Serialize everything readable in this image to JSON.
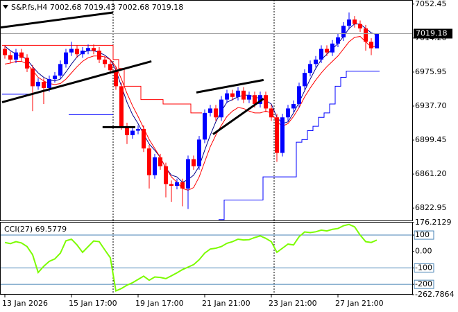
{
  "chart_data": [
    {
      "type": "candlestick",
      "title": "S&P.fs,H4  7002.68 7019.43 7002.68 7019.18",
      "categories": [
        "13 Jan 2026",
        null,
        null,
        null,
        null,
        null,
        null,
        null,
        null,
        null,
        null,
        null,
        "15 Jan 17:00",
        null,
        null,
        null,
        null,
        null,
        null,
        null,
        null,
        null,
        null,
        null,
        "19 Jan 17:00",
        null,
        null,
        null,
        null,
        null,
        null,
        null,
        null,
        null,
        null,
        null,
        "21 Jan 21:00",
        null,
        null,
        null,
        null,
        null,
        null,
        null,
        null,
        null,
        null,
        null,
        "23 Jan 21:00",
        null,
        null,
        null,
        null,
        null,
        null,
        null,
        null,
        null,
        null,
        null,
        "27 Jan 21:00",
        null,
        null,
        null,
        null,
        null,
        null,
        null
      ],
      "open": [
        7002,
        6995,
        6990,
        6998,
        6992,
        6980,
        6960,
        6965,
        6958,
        6968,
        6972,
        6985,
        6998,
        7002,
        6996,
        7000,
        7003,
        7000,
        6990,
        6985,
        6978,
        6960,
        6915,
        6905,
        6910,
        6912,
        6890,
        6860,
        6880,
        6870,
        6850,
        6848,
        6852,
        6845,
        6878,
        6870,
        6900,
        6930,
        6935,
        6925,
        6945,
        6952,
        6948,
        6955,
        6945,
        6950,
        6940,
        6950,
        6935,
        6925,
        6885,
        6925,
        6935,
        6940,
        6960,
        6975,
        6985,
        6990,
        7002,
        6998,
        7008,
        7015,
        7028,
        7035,
        7030,
        7025,
        7010,
        7002.68
      ],
      "high": [
        7006,
        6999,
        7002,
        7002,
        6996,
        6984,
        6969,
        6969,
        6972,
        6976,
        6989,
        7002,
        7010,
        7006,
        7004,
        7007,
        7007,
        7004,
        6994,
        6989,
        6982,
        6964,
        6919,
        6914,
        6916,
        6916,
        6894,
        6884,
        6884,
        6874,
        6854,
        6856,
        6856,
        6882,
        6882,
        6904,
        6934,
        6939,
        6939,
        6949,
        6956,
        6956,
        6959,
        6959,
        6954,
        6954,
        6954,
        6954,
        6939,
        6929,
        6929,
        6939,
        6944,
        6964,
        6979,
        6989,
        6994,
        7006,
        7006,
        7012,
        7019,
        7032,
        7043,
        7039,
        7034,
        7029,
        7014,
        7019.43
      ],
      "low": [
        6991,
        6986,
        6986,
        6988,
        6976,
        6932,
        6956,
        6940,
        6954,
        6964,
        6968,
        6981,
        6994,
        6992,
        6992,
        6996,
        6996,
        6986,
        6981,
        6974,
        6956,
        6911,
        6895,
        6901,
        6906,
        6886,
        6845,
        6856,
        6866,
        6835,
        6830,
        6844,
        6825,
        6822,
        6866,
        6866,
        6896,
        6926,
        6921,
        6921,
        6941,
        6944,
        6944,
        6941,
        6941,
        6936,
        6936,
        6931,
        6921,
        6875,
        6881,
        6921,
        6931,
        6936,
        6956,
        6971,
        6981,
        6986,
        6994,
        6994,
        7004,
        7011,
        7024,
        7026,
        7021,
        7000,
        6995,
        7002.68
      ],
      "close": [
        6995,
        6990,
        6998,
        6992,
        6980,
        6960,
        6965,
        6958,
        6968,
        6972,
        6985,
        6998,
        7002,
        6996,
        7000,
        7003,
        7000,
        6990,
        6985,
        6978,
        6960,
        6915,
        6905,
        6910,
        6912,
        6890,
        6860,
        6880,
        6870,
        6850,
        6848,
        6852,
        6845,
        6878,
        6870,
        6900,
        6930,
        6935,
        6925,
        6945,
        6952,
        6948,
        6955,
        6945,
        6950,
        6940,
        6950,
        6935,
        6925,
        6885,
        6925,
        6935,
        6940,
        6960,
        6975,
        6985,
        6990,
        7002,
        6998,
        7008,
        7015,
        7028,
        7035,
        7030,
        7025,
        7010,
        7002.68,
        7019.18
      ],
      "up_color": "#0000ff",
      "down_color": "#ff0000",
      "lines": [
        {
          "color": "#00008b",
          "step": false,
          "values": [
            7005,
            7000,
            6996,
            6994,
            6990,
            6982,
            6975,
            6970,
            6967,
            6966,
            6968,
            6976,
            6985,
            6993,
            6998,
            7000,
            7000,
            6998,
            6995,
            6990,
            6978,
            6960,
            6942,
            6928,
            6918,
            6906,
            6895,
            6888,
            6880,
            6868,
            6860,
            6858,
            6852,
            6855,
            6860,
            6870,
            6888,
            6905,
            6920,
            6932,
            6942,
            6945,
            6948,
            6950,
            6950,
            6948,
            6946,
            6944,
            6940,
            6925,
            6918,
            6920,
            6930,
            6942,
            6955,
            6968,
            6980,
            6990,
            6996,
            7002,
            7008,
            7016,
            7025,
            7030,
            7030,
            7025,
            7020,
            7018
          ]
        },
        {
          "color": "#ff0000",
          "step": false,
          "values": [
            6985,
            6986,
            6988,
            6988,
            6985,
            6978,
            6970,
            6966,
            6963,
            6962,
            6963,
            6968,
            6975,
            6982,
            6988,
            6992,
            6994,
            6994,
            6993,
            6990,
            6982,
            6968,
            6952,
            6938,
            6926,
            6913,
            6900,
            6890,
            6880,
            6868,
            6858,
            6852,
            6845,
            6843,
            6846,
            6858,
            6875,
            6892,
            6905,
            6916,
            6926,
            6932,
            6936,
            6935,
            6932,
            6930,
            6930,
            6932,
            6930,
            6920,
            6915,
            6918,
            6926,
            6936,
            6948,
            6958,
            6967,
            6975,
            6982,
            6988,
            6994,
            7002,
            7010,
            7015,
            7016,
            7010,
            7004,
            7005
          ]
        },
        {
          "color": "#ff0000",
          "step": true,
          "values": [
            7006,
            7006,
            7006,
            7006,
            7006,
            7006,
            7006,
            7006,
            7006,
            7006,
            7006,
            7006,
            7006,
            7006,
            7006,
            7006,
            7006,
            7006,
            7006,
            7006,
            6990,
            6980,
            6960,
            6960,
            6960,
            6945,
            6945,
            6945,
            6945,
            6940,
            6940,
            6940,
            6940,
            6940,
            6930,
            6930,
            null,
            null,
            null,
            null,
            null,
            null,
            null,
            null,
            null,
            null,
            null,
            null,
            null,
            null,
            null,
            null,
            null,
            null,
            null,
            null,
            null,
            null,
            null,
            null,
            null,
            null,
            null,
            null,
            null,
            null,
            null,
            null
          ]
        },
        {
          "color": "#0000ff",
          "step": true,
          "values": [
            6951,
            6951,
            6951,
            6951,
            6951,
            null,
            null,
            null,
            null,
            null,
            null,
            null,
            6928,
            6928,
            6928,
            6928,
            6928,
            6928,
            6928,
            6928,
            null,
            null,
            null,
            null,
            null,
            null,
            null,
            null,
            null,
            null,
            null,
            null,
            null,
            null,
            null,
            null,
            null,
            null,
            null,
            6810,
            6832,
            6832,
            6832,
            6832,
            6832,
            6832,
            6832,
            6858,
            6858,
            6858,
            6858,
            6858,
            6858,
            6897,
            6900,
            6910,
            6915,
            6925,
            6930,
            6940,
            6960,
            6970,
            6977,
            6977,
            6977,
            6977,
            6977,
            6977
          ]
        }
      ],
      "trendlines": [
        {
          "x": [
            -0.9,
            19.5
          ],
          "y": [
            7026,
            7043
          ]
        },
        {
          "x": [
            -0.5,
            26.4
          ],
          "y": [
            6942,
            6988
          ]
        },
        {
          "x": [
            17.6,
            23.5
          ],
          "y": [
            6914,
            6914
          ]
        },
        {
          "x": [
            34.5,
            46.6
          ],
          "y": [
            6953,
            6967
          ]
        },
        {
          "x": [
            37.5,
            46.6
          ],
          "y": [
            6906,
            6946
          ]
        }
      ],
      "ylim": [
        6809,
        7057
      ],
      "yticks": [
        7052.45,
        {
          "value": 7014.2,
          "label": "7014.20"
        },
        6975.95,
        {
          "value": 6937.7,
          "label": "6937.70"
        },
        6899.45,
        {
          "value": 6861.2,
          "label": "6861.20"
        },
        6822.95
      ],
      "current_price": 7019.18
    },
    {
      "type": "line",
      "title": "CCI(27) 69.5779",
      "color": "#7cfc00",
      "values": [
        55,
        48,
        60,
        52,
        30,
        -20,
        -128,
        -90,
        -60,
        -45,
        -10,
        65,
        75,
        40,
        -5,
        30,
        64,
        60,
        10,
        -38,
        -240,
        -225,
        -205,
        -190,
        -170,
        -150,
        -175,
        -155,
        -158,
        -165,
        -148,
        -130,
        -110,
        -95,
        -80,
        -50,
        -10,
        15,
        20,
        30,
        50,
        60,
        75,
        70,
        72,
        85,
        95,
        80,
        60,
        -5,
        20,
        45,
        40,
        90,
        119,
        115,
        120,
        130,
        125,
        135,
        140,
        157,
        165,
        150,
        100,
        60,
        55,
        69.5779
      ],
      "ylim": [
        -262.7864,
        176.2129
      ],
      "yticks": [
        176.2129,
        100,
        {
          "value": 0,
          "label": "0.00"
        },
        -100,
        -200,
        -262.7864
      ],
      "levels": [
        100,
        -100,
        -200
      ],
      "level_color": "#4682b4"
    }
  ]
}
